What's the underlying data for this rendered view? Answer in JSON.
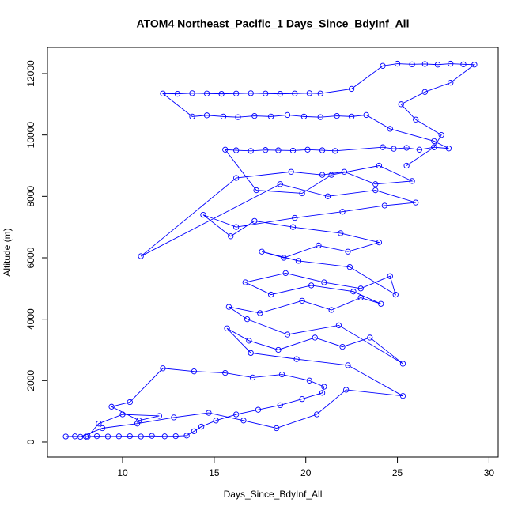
{
  "chart_data": {
    "type": "line",
    "title": "ATOM4 Northeast_Pacific_1 Days_Since_BdyInf_All",
    "x_label": "Days_Since_BdyInf_All",
    "y_label": "Altitude (m)",
    "color": "#0000ff",
    "markers": "open-circle",
    "xlim": [
      5.9,
      30.5
    ],
    "ylim": [
      -490,
      12850
    ],
    "xticks": [
      10,
      15,
      20,
      25,
      30
    ],
    "yticks": [
      0,
      2000,
      4000,
      6000,
      8000,
      10000,
      12000
    ],
    "x": [
      6.9,
      7.4,
      8.0,
      8.6,
      9.2,
      9.8,
      10.4,
      11.0,
      11.6,
      12.3,
      12.9,
      13.5,
      13.9,
      14.3,
      15.1,
      16.2,
      17.4,
      18.6,
      19.8,
      20.9,
      21.0,
      20.2,
      18.7,
      17.1,
      15.6,
      13.9,
      12.2,
      10.4,
      9.4,
      10.9,
      12.0,
      10.0,
      8.7,
      8.1,
      7.7,
      8.9,
      10.8,
      12.8,
      14.7,
      16.6,
      18.4,
      20.6,
      22.2,
      25.3,
      22.3,
      19.5,
      17.0,
      15.7,
      16.9,
      18.5,
      20.5,
      22.0,
      23.5,
      25.3,
      21.8,
      19.0,
      16.8,
      15.8,
      17.5,
      19.8,
      21.4,
      23.0,
      24.1,
      22.6,
      20.3,
      18.1,
      16.7,
      18.9,
      21.0,
      23.0,
      24.6,
      24.9,
      22.4,
      19.6,
      17.6,
      18.8,
      20.7,
      22.3,
      24.0,
      21.9,
      19.3,
      17.2,
      15.9,
      14.4,
      16.2,
      19.4,
      22.0,
      24.3,
      26.0,
      23.8,
      21.2,
      18.6,
      11.0,
      16.2,
      19.2,
      20.9,
      22.1,
      23.8,
      25.8,
      24.0,
      21.4,
      19.8,
      17.3,
      15.6,
      16.2,
      17.0,
      17.8,
      18.5,
      19.3,
      20.1,
      20.9,
      21.6,
      24.2,
      24.8,
      25.5,
      26.2,
      27.0,
      27.8,
      27.0,
      24.6,
      23.3,
      22.5,
      21.7,
      20.8,
      19.9,
      19.0,
      18.1,
      17.2,
      16.3,
      15.5,
      14.6,
      13.8,
      12.2,
      13.0,
      13.8,
      14.6,
      15.4,
      16.2,
      17.0,
      17.8,
      18.6,
      19.4,
      20.2,
      20.8,
      22.5,
      24.2,
      25.0,
      25.8,
      26.5,
      27.2,
      27.9,
      28.6,
      29.2,
      27.9,
      26.5,
      25.2,
      26.0,
      27.4,
      27.0,
      25.5
    ],
    "values": [
      180,
      185,
      175,
      190,
      180,
      185,
      190,
      180,
      200,
      185,
      190,
      210,
      350,
      500,
      700,
      900,
      1050,
      1200,
      1400,
      1600,
      1800,
      2000,
      2200,
      2100,
      2250,
      2300,
      2400,
      1300,
      1150,
      700,
      850,
      900,
      600,
      180,
      170,
      450,
      600,
      800,
      950,
      700,
      450,
      900,
      1700,
      1500,
      2500,
      2700,
      2900,
      3700,
      3300,
      3000,
      3400,
      3100,
      3400,
      2550,
      3800,
      3500,
      4000,
      4400,
      4200,
      4600,
      4300,
      4700,
      4500,
      4900,
      5100,
      4800,
      5200,
      5500,
      5200,
      5000,
      5400,
      4800,
      5700,
      5900,
      6200,
      6000,
      6400,
      6200,
      6500,
      6800,
      7000,
      7200,
      6700,
      7400,
      7000,
      7300,
      7500,
      7700,
      7800,
      8200,
      8000,
      8400,
      6050,
      8600,
      8800,
      8700,
      8800,
      8400,
      8500,
      9000,
      8700,
      8100,
      8200,
      9520,
      9500,
      9480,
      9510,
      9500,
      9490,
      9520,
      9500,
      9480,
      9600,
      9550,
      9580,
      9520,
      9600,
      9560,
      9800,
      10200,
      10650,
      10600,
      10620,
      10580,
      10600,
      10650,
      10600,
      10620,
      10580,
      10600,
      10640,
      10600,
      11350,
      11340,
      11360,
      11350,
      11340,
      11350,
      11360,
      11350,
      11340,
      11350,
      11360,
      11350,
      11500,
      12250,
      12320,
      12300,
      12310,
      12290,
      12320,
      12300,
      12290,
      11700,
      11400,
      11000,
      10500,
      10000,
      9600,
      9000
    ]
  }
}
